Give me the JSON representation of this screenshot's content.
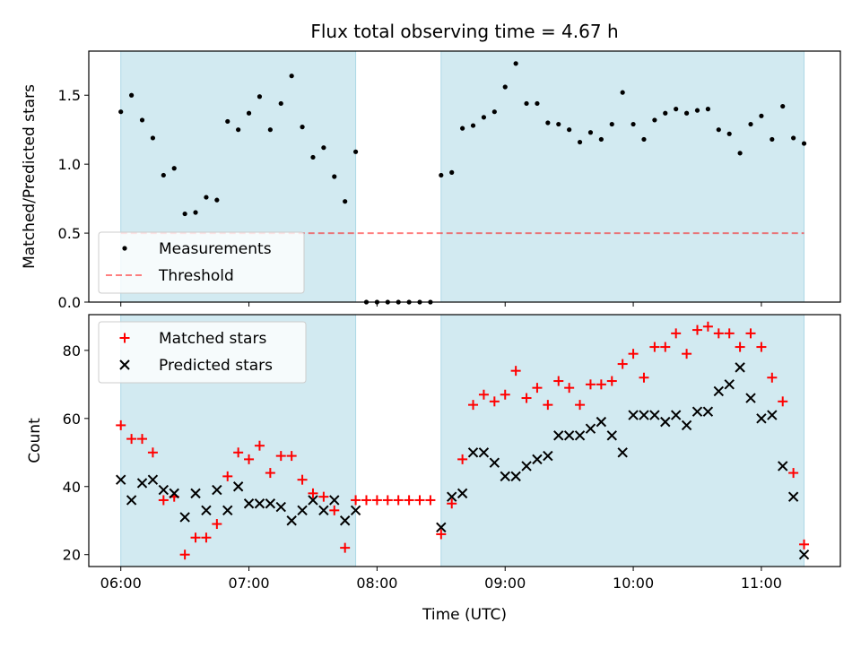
{
  "figure": {
    "title": "Flux total observing time = 4.67 h",
    "xlabel": "Time (UTC)",
    "x_ticks": [
      "06:00",
      "07:00",
      "08:00",
      "09:00",
      "10:00",
      "11:00"
    ]
  },
  "colors": {
    "shade": "#add8e6",
    "measurement": "#000000",
    "threshold": "#ff0000",
    "matched": "#ff0000",
    "predicted": "#000000"
  },
  "chart_data": [
    {
      "type": "scatter",
      "ylabel": "Matched/Predicted stars",
      "x_unit": "time (UTC)",
      "xlim": [
        "05:45",
        "11:37"
      ],
      "ylim": [
        0,
        1.82
      ],
      "y_ticks": [
        "0.0",
        "0.5",
        "1.0",
        "1.5"
      ],
      "shaded_intervals": [
        [
          "06:00",
          "07:50"
        ],
        [
          "08:30",
          "11:20"
        ]
      ],
      "threshold": 0.5,
      "threshold_range": [
        "06:00",
        "11:20"
      ],
      "legend": {
        "placement": "lower-left",
        "entries": [
          "Measurements",
          "Threshold"
        ]
      },
      "series": [
        {
          "name": "Measurements",
          "x": [
            "06:00",
            "06:05",
            "06:10",
            "06:15",
            "06:20",
            "06:25",
            "06:30",
            "06:35",
            "06:40",
            "06:45",
            "06:50",
            "06:55",
            "07:00",
            "07:05",
            "07:10",
            "07:15",
            "07:20",
            "07:25",
            "07:30",
            "07:35",
            "07:40",
            "07:45",
            "07:50",
            "07:55",
            "08:00",
            "08:05",
            "08:10",
            "08:15",
            "08:20",
            "08:25",
            "08:30",
            "08:35",
            "08:40",
            "08:45",
            "08:50",
            "08:55",
            "09:00",
            "09:05",
            "09:10",
            "09:15",
            "09:20",
            "09:25",
            "09:30",
            "09:35",
            "09:40",
            "09:45",
            "09:50",
            "09:55",
            "10:00",
            "10:05",
            "10:10",
            "10:15",
            "10:20",
            "10:25",
            "10:30",
            "10:35",
            "10:40",
            "10:45",
            "10:50",
            "10:55",
            "11:00",
            "11:05",
            "11:10",
            "11:15",
            "11:20"
          ],
          "y": [
            1.38,
            1.5,
            1.32,
            1.19,
            0.92,
            0.97,
            0.64,
            0.65,
            0.76,
            0.74,
            1.31,
            1.25,
            1.37,
            1.49,
            1.25,
            1.44,
            1.64,
            1.27,
            1.05,
            1.12,
            0.91,
            0.73,
            1.09,
            0,
            0,
            0,
            0,
            0,
            0,
            0,
            0.92,
            0.94,
            1.26,
            1.28,
            1.34,
            1.38,
            1.56,
            1.73,
            1.44,
            1.44,
            1.3,
            1.29,
            1.25,
            1.16,
            1.23,
            1.18,
            1.29,
            1.52,
            1.29,
            1.18,
            1.32,
            1.37,
            1.4,
            1.37,
            1.39,
            1.4,
            1.25,
            1.22,
            1.08,
            1.29,
            1.35,
            1.18,
            1.42,
            1.19,
            1.15
          ]
        }
      ]
    },
    {
      "type": "scatter",
      "ylabel": "Count",
      "x_unit": "time (UTC)",
      "xlim": [
        "05:45",
        "11:37"
      ],
      "ylim": [
        16.5,
        90.5
      ],
      "y_ticks": [
        "20",
        "40",
        "60",
        "80"
      ],
      "shaded_intervals": [
        [
          "06:00",
          "07:50"
        ],
        [
          "08:30",
          "11:20"
        ]
      ],
      "legend": {
        "placement": "upper-left",
        "entries": [
          "Matched stars",
          "Predicted stars"
        ]
      },
      "series": [
        {
          "name": "Matched stars",
          "x": [
            "06:00",
            "06:05",
            "06:10",
            "06:15",
            "06:20",
            "06:25",
            "06:30",
            "06:35",
            "06:40",
            "06:45",
            "06:50",
            "06:55",
            "07:00",
            "07:05",
            "07:10",
            "07:15",
            "07:20",
            "07:25",
            "07:30",
            "07:35",
            "07:40",
            "07:45",
            "07:50",
            "07:55",
            "08:00",
            "08:05",
            "08:10",
            "08:15",
            "08:20",
            "08:25",
            "08:30",
            "08:35",
            "08:40",
            "08:45",
            "08:50",
            "08:55",
            "09:00",
            "09:05",
            "09:10",
            "09:15",
            "09:20",
            "09:25",
            "09:30",
            "09:35",
            "09:40",
            "09:45",
            "09:50",
            "09:55",
            "10:00",
            "10:05",
            "10:10",
            "10:15",
            "10:20",
            "10:25",
            "10:30",
            "10:35",
            "10:40",
            "10:45",
            "10:50",
            "10:55",
            "11:00",
            "11:05",
            "11:10",
            "11:15",
            "11:20"
          ],
          "y": [
            58,
            54,
            54,
            50,
            36,
            37,
            20,
            25,
            25,
            29,
            43,
            50,
            48,
            52,
            44,
            49,
            49,
            42,
            38,
            37,
            33,
            22,
            36,
            36,
            36,
            36,
            36,
            36,
            36,
            36,
            26,
            35,
            48,
            64,
            67,
            65,
            67,
            74,
            66,
            69,
            64,
            71,
            69,
            64,
            70,
            70,
            71,
            76,
            79,
            72,
            81,
            81,
            85,
            79,
            86,
            87,
            85,
            85,
            81,
            85,
            81,
            72,
            65,
            44,
            23
          ]
        },
        {
          "name": "Predicted stars",
          "x": [
            "06:00",
            "06:05",
            "06:10",
            "06:15",
            "06:20",
            "06:25",
            "06:30",
            "06:35",
            "06:40",
            "06:45",
            "06:50",
            "06:55",
            "07:00",
            "07:05",
            "07:10",
            "07:15",
            "07:20",
            "07:25",
            "07:30",
            "07:35",
            "07:40",
            "07:45",
            "07:50",
            "08:30",
            "08:35",
            "08:40",
            "08:45",
            "08:50",
            "08:55",
            "09:00",
            "09:05",
            "09:10",
            "09:15",
            "09:20",
            "09:25",
            "09:30",
            "09:35",
            "09:40",
            "09:45",
            "09:50",
            "09:55",
            "10:00",
            "10:05",
            "10:10",
            "10:15",
            "10:20",
            "10:25",
            "10:30",
            "10:35",
            "10:40",
            "10:45",
            "10:50",
            "10:55",
            "11:00",
            "11:05",
            "11:10",
            "11:15",
            "11:20"
          ],
          "y": [
            42,
            36,
            41,
            42,
            39,
            38,
            31,
            38,
            33,
            39,
            33,
            40,
            35,
            35,
            35,
            34,
            30,
            33,
            36,
            33,
            36,
            30,
            33,
            28,
            37,
            38,
            50,
            50,
            47,
            43,
            43,
            46,
            48,
            49,
            55,
            55,
            55,
            57,
            59,
            55,
            50,
            61,
            61,
            61,
            59,
            61,
            58,
            62,
            62,
            68,
            70,
            75,
            66,
            60,
            61,
            46,
            37,
            20
          ]
        }
      ]
    }
  ]
}
